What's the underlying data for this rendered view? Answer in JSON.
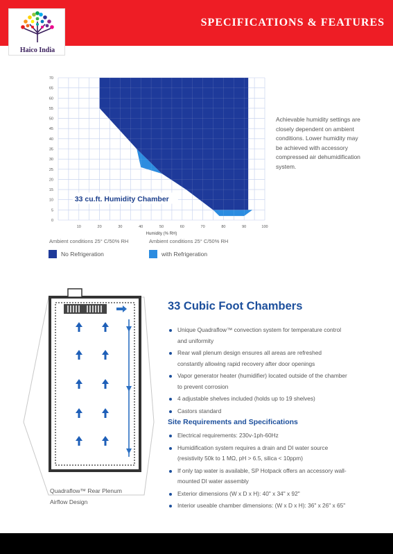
{
  "header": {
    "title": "SPECIFICATIONS & FEATURES",
    "logo_text": "Haico India",
    "banner_color": "#ee1d25"
  },
  "chart_data": {
    "type": "area",
    "title": "33 cu.ft. Humidity Chamber",
    "xlabel": "Humidity (% RH)",
    "ylabel": "",
    "xlim": [
      0,
      100
    ],
    "ylim": [
      0,
      70
    ],
    "x_ticks": [
      10,
      20,
      30,
      40,
      50,
      60,
      70,
      80,
      90,
      100
    ],
    "y_ticks": [
      0,
      5,
      10,
      15,
      20,
      25,
      30,
      35,
      40,
      45,
      50,
      55,
      60,
      65,
      70
    ],
    "grid": true,
    "series": [
      {
        "name": "No Refrigeration",
        "color": "#1e3a9a",
        "polygon": [
          [
            20,
            70
          ],
          [
            20,
            55
          ],
          [
            38,
            35
          ],
          [
            50,
            23
          ],
          [
            62,
            15
          ],
          [
            75,
            5
          ],
          [
            92,
            5
          ],
          [
            92,
            70
          ]
        ]
      },
      {
        "name": "with Refrigeration",
        "color": "#2b8ce0",
        "polygon": [
          [
            20,
            55
          ],
          [
            38,
            35
          ],
          [
            40,
            26
          ],
          [
            56,
            21
          ],
          [
            72,
            8
          ],
          [
            78,
            2
          ],
          [
            90,
            2
          ],
          [
            94,
            5
          ],
          [
            92,
            5
          ],
          [
            75,
            5
          ],
          [
            62,
            15
          ],
          [
            50,
            23
          ],
          [
            38,
            35
          ]
        ]
      }
    ],
    "legend": [
      {
        "label": "No Refrigeration",
        "color": "#1e3a9a"
      },
      {
        "label": "with Refrigeration",
        "color": "#2b8ce0"
      }
    ],
    "ambient_left": "Ambient conditions 25° C/50% RH",
    "ambient_right": "Ambient conditions 25° C/50% RH",
    "note": "Achievable humidity settings are closely dependent on ambient conditions. Lower humidity may be achieved with accessory compressed air dehumidification system."
  },
  "diagram": {
    "caption_line1": "Quadraflow™ Rear Plenum",
    "caption_line2": "Airflow Design"
  },
  "features": {
    "title": "33 Cubic Foot Chambers",
    "items": [
      "Unique Quadraflow™ convection system for temperature control and uniformity",
      "Rear wall plenum design ensures all areas are refreshed constantly allowing rapid recovery after door openings",
      "Vapor generator heater (humidifier) located outside of the chamber to prevent corrosion",
      "4 adjustable shelves included (holds up to 19 shelves)",
      "Castors standard"
    ]
  },
  "site": {
    "title": "Site Requirements and Specifications",
    "items": [
      "Electrical requirements: 230v-1ph-60Hz",
      "Humidification system requires a drain and DI water source (resistivity 50k to 1 MΩ, pH > 6.5, silica < 10ppm)",
      "If only tap water is available, SP Hotpack offers an accessory wall-mounted DI water assembly",
      "Exterior dimensions (W x D x H): 40\" x 34\" x 92\"",
      "Interior useable chamber dimensions: (W x D x H): 36\" x 26\" x 65\""
    ]
  }
}
